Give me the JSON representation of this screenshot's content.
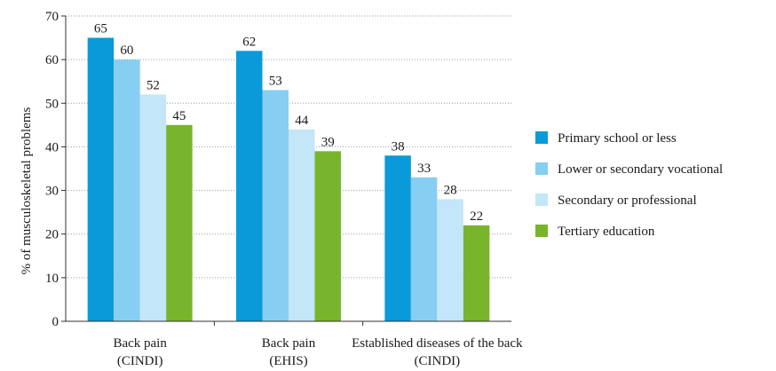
{
  "chart_data": {
    "type": "bar",
    "ylabel": "% of musculoskeletal problems",
    "xlabel": "",
    "title": "",
    "ylim": [
      0,
      70
    ],
    "yticks": [
      0,
      10,
      20,
      30,
      40,
      50,
      60,
      70
    ],
    "grid": "horizontal dotted",
    "legend_position": "right",
    "categories": [
      {
        "line1": "Back pain",
        "line2": "(CINDI)"
      },
      {
        "line1": "Back pain",
        "line2": "(EHIS)"
      },
      {
        "line1": "Established diseases of the back",
        "line2": "(CINDI)"
      }
    ],
    "series": [
      {
        "name": "Primary school or less",
        "color": "#0a9ad9",
        "values": [
          65,
          62,
          38
        ]
      },
      {
        "name": "Lower or secondary vocational",
        "color": "#86cff2",
        "values": [
          60,
          53,
          33
        ]
      },
      {
        "name": "Secondary or professional",
        "color": "#c3e6f8",
        "values": [
          52,
          44,
          28
        ]
      },
      {
        "name": "Tertiary education",
        "color": "#79b52c",
        "values": [
          45,
          39,
          22
        ]
      }
    ]
  }
}
